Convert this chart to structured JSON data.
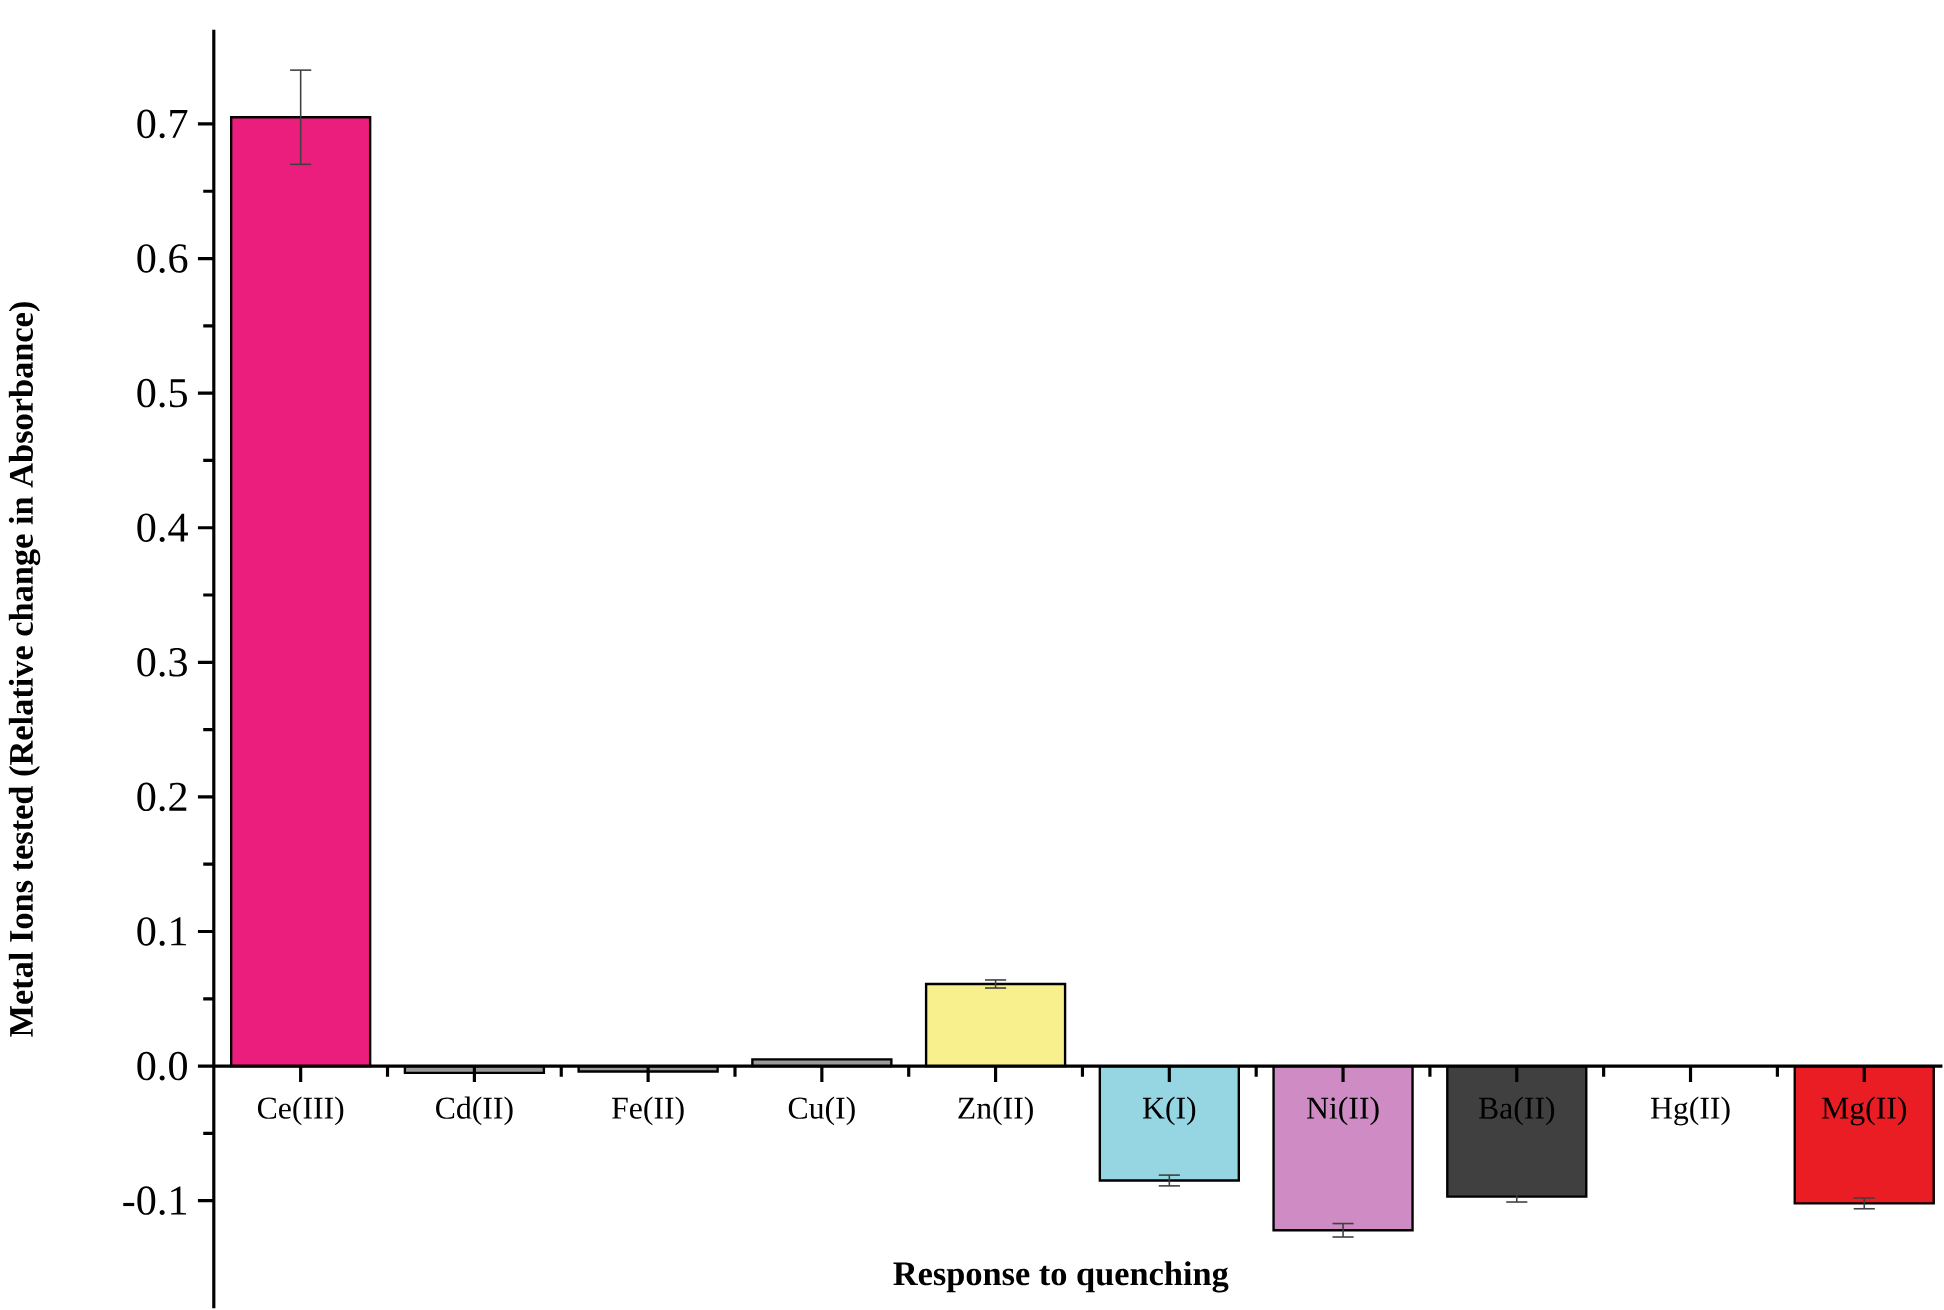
{
  "chart_data": {
    "type": "bar",
    "xlabel": "Response to quenching",
    "ylabel": "Metal Ions tested (Relative change in Absorbance)",
    "categories": [
      "Ce(III)",
      "Cd(II)",
      "Fe(II)",
      "Cu(I)",
      "Zn(II)",
      "K(I)",
      "Ni(II)",
      "Ba(II)",
      "Hg(II)",
      "Mg(II)"
    ],
    "values": [
      0.705,
      -0.005,
      -0.004,
      0.005,
      0.061,
      -0.085,
      -0.122,
      -0.097,
      null,
      -0.102
    ],
    "errors": [
      0.035,
      null,
      null,
      null,
      0.003,
      0.004,
      0.005,
      0.004,
      null,
      0.004
    ],
    "colors": [
      "#ec1e7d",
      "#9a9a9a",
      "#9a9a9a",
      "#9a9a9a",
      "#f7f08c",
      "#96d6e3",
      "#cf8cc4",
      "#404040",
      null,
      "#ea1c24"
    ],
    "ylim": [
      -0.18,
      0.77
    ],
    "yticks": [
      {
        "value": -0.1,
        "label": "-0.1"
      },
      {
        "value": 0,
        "label": "0.0"
      },
      0.1,
      0.2,
      0.3,
      0.4,
      0.5,
      0.6,
      0.7
    ]
  }
}
